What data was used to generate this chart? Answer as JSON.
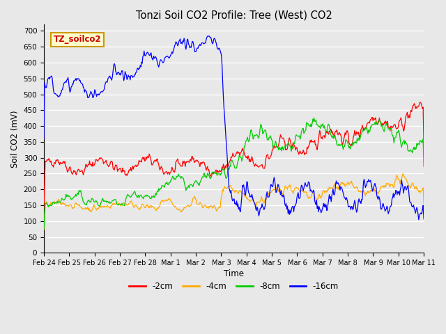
{
  "title": "Tonzi Soil CO2 Profile: Tree (West) CO2",
  "ylabel": "Soil CO2 (mV)",
  "xlabel": "Time",
  "ylim": [
    0,
    720
  ],
  "yticks": [
    0,
    50,
    100,
    150,
    200,
    250,
    300,
    350,
    400,
    450,
    500,
    550,
    600,
    650,
    700
  ],
  "x_labels": [
    "Feb 24",
    "Feb 25",
    "Feb 26",
    "Feb 27",
    "Feb 28",
    "Mar 1",
    "Mar 2",
    "Mar 3",
    "Mar 4",
    "Mar 5",
    "Mar 6",
    "Mar 7",
    "Mar 8",
    "Mar 9",
    "Mar 10",
    "Mar 11"
  ],
  "legend_label": "TZ_soilco2",
  "legend_box_color": "#ffffcc",
  "legend_box_edge": "#cc9900",
  "series_colors": {
    "neg2cm": "#ff0000",
    "neg4cm": "#ffaa00",
    "neg8cm": "#00cc00",
    "neg16cm": "#0000ff"
  },
  "series_labels": [
    "-2cm",
    "-4cm",
    "-8cm",
    "-16cm"
  ],
  "plot_bg_color": "#e8e8e8",
  "grid_color": "#ffffff",
  "seed": 42
}
